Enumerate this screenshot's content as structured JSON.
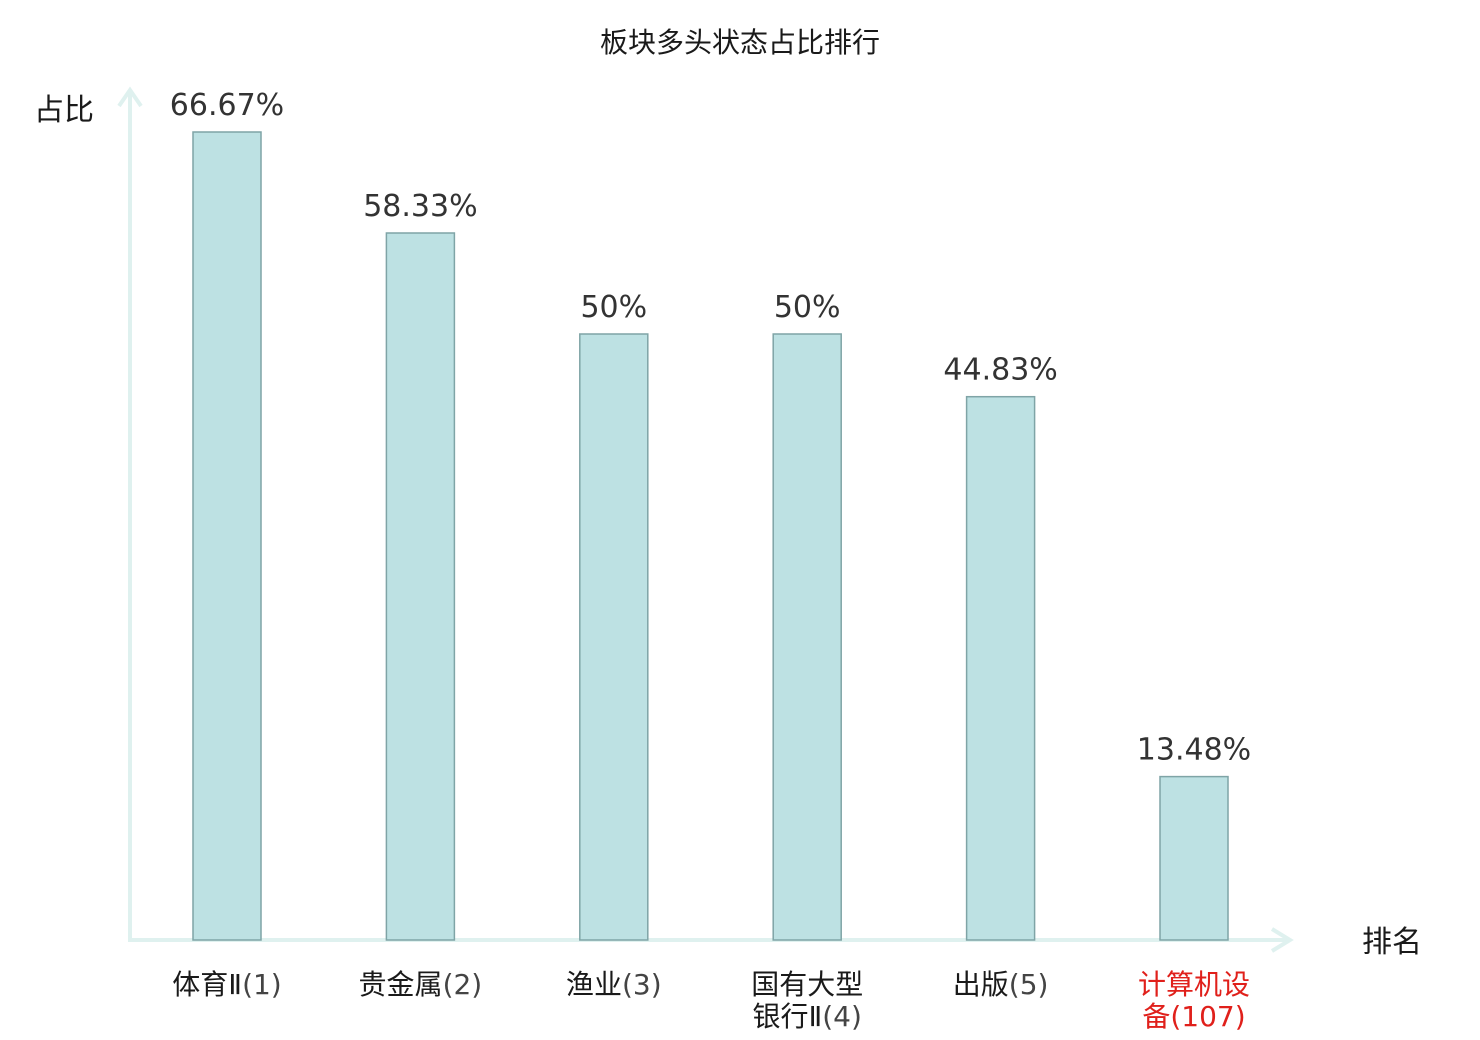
{
  "chart_data": {
    "type": "bar",
    "title": "板块多头状态占比排行",
    "ylabel": "占比",
    "xlabel": "排名",
    "ylim": [
      0,
      70
    ],
    "grid": false,
    "categories": [
      {
        "lines": [
          "体育Ⅱ"
        ],
        "rank": "(1)",
        "highlight": false
      },
      {
        "lines": [
          "贵金属"
        ],
        "rank": "(2)",
        "highlight": false
      },
      {
        "lines": [
          "渔业"
        ],
        "rank": "(3)",
        "highlight": false
      },
      {
        "lines": [
          "国有大型",
          "银行Ⅱ"
        ],
        "rank": "(4)",
        "highlight": false
      },
      {
        "lines": [
          "出版"
        ],
        "rank": "(5)",
        "highlight": false
      },
      {
        "lines": [
          "计算机设",
          "备"
        ],
        "rank": "(107)",
        "highlight": true
      }
    ],
    "values": [
      66.67,
      58.33,
      50,
      50,
      44.83,
      13.48
    ],
    "value_labels": [
      "66.67%",
      "58.33%",
      "50%",
      "50%",
      "44.83%",
      "13.48%"
    ]
  },
  "colors": {
    "bar_fill": "#bde1e3",
    "bar_stroke": "#7fa4a6",
    "axis": "#dff1ef",
    "text": "#1a1a1a",
    "rank_text": "#444444",
    "highlight": "#e0201b"
  }
}
